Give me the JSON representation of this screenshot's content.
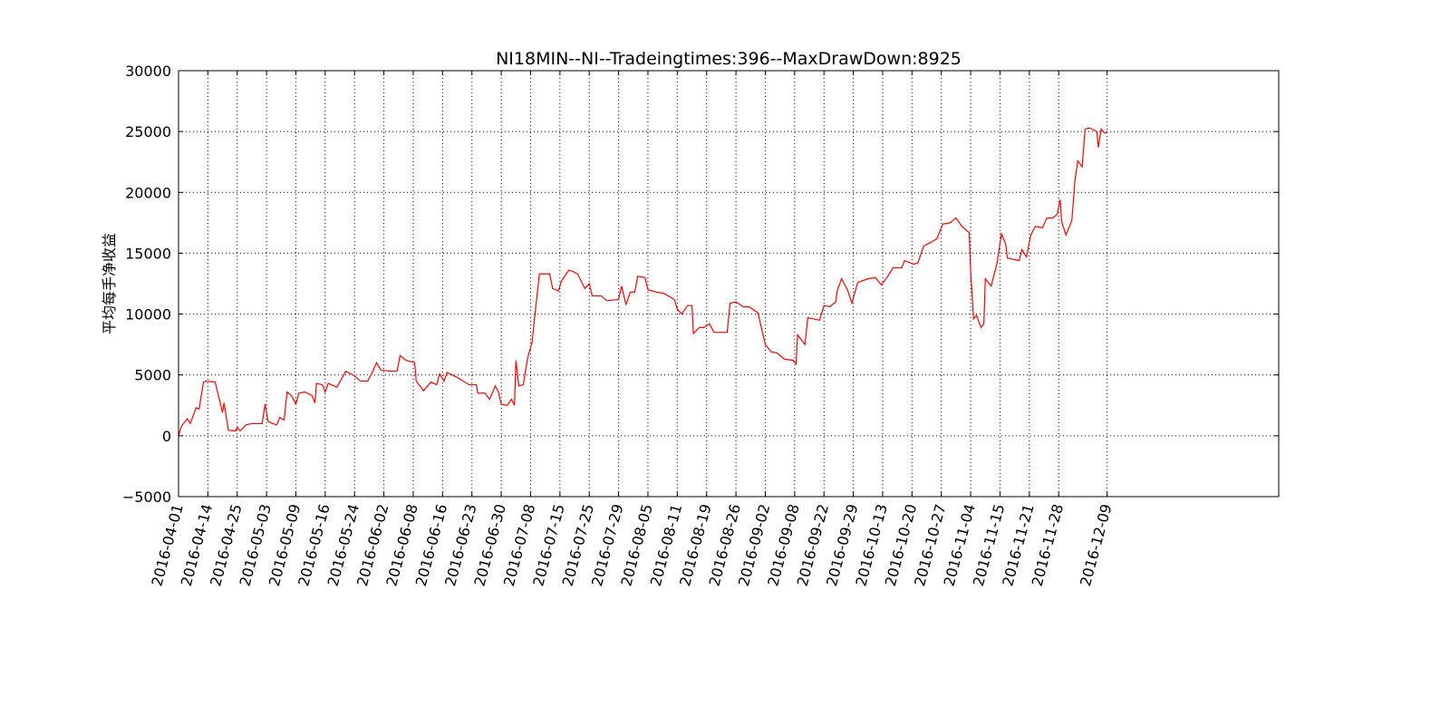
{
  "chart_data": {
    "type": "line",
    "title": "NI18MIN--NI--Tradeingtimes:396--MaxDrawDown:8925",
    "y_label": "平均每手净收益",
    "grid": true,
    "xlim": [
      0,
      750
    ],
    "ylim": [
      -5000,
      30000
    ],
    "yticks": [
      {
        "value": -5000,
        "label": "−5000"
      },
      0,
      5000,
      10000,
      15000,
      20000,
      25000,
      30000
    ],
    "xticks": [
      {
        "value": 0,
        "label": "2016-04-01"
      },
      {
        "value": 20,
        "label": "2016-04-14"
      },
      {
        "value": 40,
        "label": "2016-04-25"
      },
      {
        "value": 60,
        "label": "2016-05-03"
      },
      {
        "value": 80,
        "label": "2016-05-09"
      },
      {
        "value": 100,
        "label": "2016-05-16"
      },
      {
        "value": 120,
        "label": "2016-05-24"
      },
      {
        "value": 140,
        "label": "2016-06-02"
      },
      {
        "value": 160,
        "label": "2016-06-08"
      },
      {
        "value": 180,
        "label": "2016-06-16"
      },
      {
        "value": 200,
        "label": "2016-06-23"
      },
      {
        "value": 220,
        "label": "2016-06-30"
      },
      {
        "value": 240,
        "label": "2016-07-08"
      },
      {
        "value": 260,
        "label": "2016-07-15"
      },
      {
        "value": 280,
        "label": "2016-07-25"
      },
      {
        "value": 300,
        "label": "2016-07-29"
      },
      {
        "value": 320,
        "label": "2016-08-05"
      },
      {
        "value": 340,
        "label": "2016-08-11"
      },
      {
        "value": 360,
        "label": "2016-08-19"
      },
      {
        "value": 380,
        "label": "2016-08-26"
      },
      {
        "value": 400,
        "label": "2016-09-02"
      },
      {
        "value": 420,
        "label": "2016-09-08"
      },
      {
        "value": 440,
        "label": "2016-09-22"
      },
      {
        "value": 460,
        "label": "2016-09-29"
      },
      {
        "value": 480,
        "label": "2016-10-13"
      },
      {
        "value": 500,
        "label": "2016-10-20"
      },
      {
        "value": 520,
        "label": "2016-10-27"
      },
      {
        "value": 540,
        "label": "2016-11-04"
      },
      {
        "value": 560,
        "label": "2016-11-15"
      },
      {
        "value": 580,
        "label": "2016-11-21"
      },
      {
        "value": 600,
        "label": "2016-11-28"
      },
      {
        "value": 633,
        "label": "2016-12-09"
      }
    ],
    "series": [
      {
        "color": "#ff0000",
        "x": [
          0,
          2,
          6,
          8,
          12,
          14,
          17,
          19,
          25,
          30,
          31,
          34,
          39,
          40,
          42,
          46,
          50,
          57,
          59,
          61,
          64,
          67,
          69,
          72,
          74,
          77,
          80,
          82,
          86,
          91,
          93,
          94,
          98,
          100,
          102,
          108,
          114,
          119,
          124,
          129,
          132,
          135,
          138,
          145,
          149,
          151,
          155,
          161,
          162,
          167,
          172,
          176,
          178,
          181,
          183,
          190,
          198,
          203,
          204,
          209,
          212,
          216,
          218,
          220,
          224,
          227,
          229,
          230,
          232,
          235,
          238,
          241,
          243,
          246,
          253,
          255,
          259,
          261,
          266,
          269,
          272,
          277,
          280,
          282,
          288,
          292,
          300,
          302,
          305,
          308,
          311,
          313,
          318,
          320,
          326,
          331,
          338,
          340,
          343,
          347,
          350,
          351,
          355,
          358,
          362,
          365,
          374,
          376,
          380,
          385,
          389,
          395,
          400,
          404,
          408,
          413,
          419,
          421,
          422,
          427,
          429,
          437,
          440,
          444,
          448,
          449,
          452,
          456,
          459,
          463,
          470,
          475,
          479,
          483,
          487,
          493,
          495,
          501,
          504,
          508,
          513,
          517,
          521,
          526,
          530,
          534,
          539,
          540,
          542,
          544,
          547,
          549,
          550,
          554,
          558,
          561,
          564,
          565,
          573,
          575,
          578,
          581,
          584,
          589,
          592,
          596,
          599,
          601,
          602,
          605,
          609,
          611,
          613,
          616,
          618,
          621,
          626,
          627,
          629,
          631,
          633
        ],
        "values": [
          0,
          800,
          1400,
          1000,
          2300,
          2200,
          4400,
          4500,
          4400,
          1900,
          2700,
          450,
          400,
          700,
          400,
          900,
          1000,
          1000,
          2600,
          1200,
          1000,
          900,
          1500,
          1300,
          3600,
          3300,
          2600,
          3500,
          3600,
          3300,
          2700,
          4300,
          4200,
          3600,
          4300,
          4000,
          5300,
          5000,
          4500,
          4500,
          5200,
          6000,
          5400,
          5300,
          5300,
          6600,
          6200,
          6000,
          4500,
          3700,
          4400,
          4200,
          5100,
          4500,
          5200,
          4800,
          4200,
          4200,
          3500,
          3500,
          3000,
          4100,
          3600,
          2600,
          2500,
          3000,
          2500,
          6200,
          4100,
          4200,
          6400,
          7700,
          10000,
          13300,
          13300,
          12100,
          11900,
          12700,
          13600,
          13500,
          13300,
          12100,
          12500,
          11500,
          11500,
          11100,
          11200,
          12300,
          10800,
          11800,
          11800,
          13100,
          13000,
          12000,
          11800,
          11700,
          11200,
          10400,
          10000,
          10700,
          10700,
          8400,
          8900,
          8900,
          9200,
          8500,
          8500,
          10900,
          11000,
          10600,
          10600,
          10100,
          7500,
          6900,
          6800,
          6300,
          6200,
          5900,
          8300,
          7500,
          9700,
          9500,
          10700,
          10600,
          11000,
          11900,
          12900,
          12000,
          10900,
          12600,
          12900,
          13000,
          12400,
          13000,
          13800,
          13800,
          14400,
          14100,
          14200,
          15600,
          15900,
          16200,
          17400,
          17500,
          17900,
          17200,
          16700,
          13500,
          9600,
          9900,
          8900,
          9200,
          12900,
          12300,
          14200,
          16600,
          15700,
          14600,
          14400,
          15300,
          14700,
          16500,
          17200,
          17100,
          17900,
          17900,
          18200,
          19400,
          17600,
          16500,
          17700,
          20900,
          22600,
          22100,
          25200,
          25300,
          25000,
          23700,
          25200,
          24900,
          24900
        ]
      }
    ]
  }
}
